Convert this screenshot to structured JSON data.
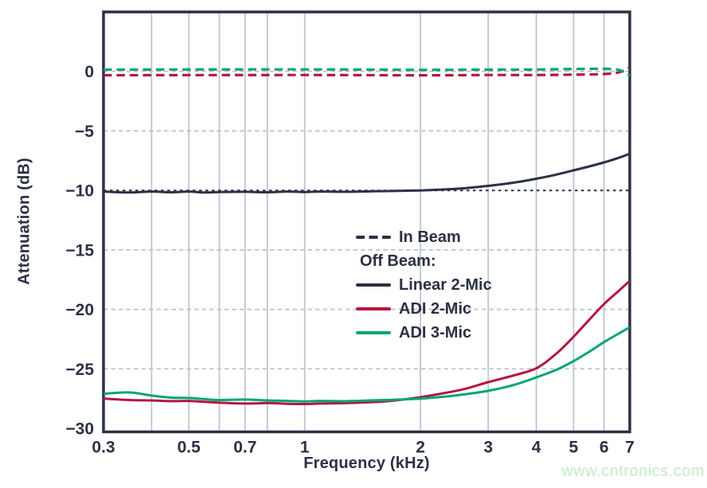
{
  "watermark": {
    "text": "www.cntronics.com"
  },
  "chart_data": {
    "type": "line",
    "title": "",
    "xlabel": "Frequency (kHz)",
    "ylabel": "Attenuation (dB)",
    "x_scale": "log",
    "xlim": [
      0.3,
      7
    ],
    "ylim": [
      -30.3,
      5
    ],
    "grid": true,
    "legend_position": "inside center-right",
    "x_ticks": {
      "values": [
        0.3,
        0.5,
        0.7,
        1,
        2,
        3,
        4,
        5,
        6,
        7
      ],
      "labels": [
        "0.3",
        "0.5",
        "0.7",
        "1",
        "2",
        "3",
        "4",
        "5",
        "6",
        "7"
      ]
    },
    "y_ticks": {
      "values": [
        0,
        -5,
        -10,
        -15,
        -20,
        -25,
        -30
      ],
      "labels": [
        "0",
        "−5",
        "−10",
        "−15",
        "−20",
        "−25",
        "−30"
      ]
    },
    "x_gridlines": [
      0.4,
      0.5,
      0.6,
      0.7,
      0.8,
      1,
      2,
      3,
      4,
      5,
      6
    ],
    "y_gridlines_light": [
      0,
      -5,
      -15,
      -20,
      -25
    ],
    "y_gridline_dark": -10,
    "colors": {
      "dark": "#2b3144",
      "crimson": "#b3173f",
      "green": "#00a579",
      "grid": "#bcc2cf",
      "watermark": "#c6ecc3"
    },
    "legend": {
      "in_beam_label": "In Beam",
      "off_beam_label": "Off Beam:",
      "items": [
        {
          "label": "Linear 2-Mic",
          "color": "dark"
        },
        {
          "label": "ADI 2-Mic",
          "color": "crimson"
        },
        {
          "label": "ADI 3-Mic",
          "color": "green"
        }
      ]
    },
    "series": [
      {
        "name": "Linear 2-Mic off beam",
        "color": "dark",
        "dash": false,
        "points": [
          [
            0.3,
            -10.1
          ],
          [
            0.35,
            -10.18
          ],
          [
            0.4,
            -10.1
          ],
          [
            0.45,
            -10.16
          ],
          [
            0.5,
            -10.1
          ],
          [
            0.55,
            -10.18
          ],
          [
            0.6,
            -10.14
          ],
          [
            0.7,
            -10.12
          ],
          [
            0.8,
            -10.16
          ],
          [
            0.9,
            -10.1
          ],
          [
            1,
            -10.14
          ],
          [
            1.1,
            -10.1
          ],
          [
            1.3,
            -10.12
          ],
          [
            1.5,
            -10.08
          ],
          [
            1.7,
            -10.05
          ],
          [
            2,
            -10.0
          ],
          [
            2.3,
            -9.92
          ],
          [
            2.6,
            -9.82
          ],
          [
            3,
            -9.62
          ],
          [
            3.5,
            -9.35
          ],
          [
            4,
            -9.02
          ],
          [
            4.5,
            -8.68
          ],
          [
            5,
            -8.32
          ],
          [
            5.5,
            -7.98
          ],
          [
            6,
            -7.65
          ],
          [
            6.5,
            -7.3
          ],
          [
            7,
            -6.92
          ]
        ]
      },
      {
        "name": "ADI 2-Mic off beam",
        "color": "crimson",
        "dash": false,
        "points": [
          [
            0.3,
            -27.5
          ],
          [
            0.35,
            -27.62
          ],
          [
            0.4,
            -27.66
          ],
          [
            0.45,
            -27.72
          ],
          [
            0.5,
            -27.7
          ],
          [
            0.55,
            -27.78
          ],
          [
            0.6,
            -27.85
          ],
          [
            0.7,
            -27.92
          ],
          [
            0.8,
            -27.88
          ],
          [
            0.9,
            -27.94
          ],
          [
            1,
            -27.96
          ],
          [
            1.1,
            -27.92
          ],
          [
            1.3,
            -27.88
          ],
          [
            1.5,
            -27.8
          ],
          [
            1.7,
            -27.68
          ],
          [
            2,
            -27.38
          ],
          [
            2.3,
            -27.05
          ],
          [
            2.6,
            -26.7
          ],
          [
            3,
            -26.12
          ],
          [
            3.5,
            -25.55
          ],
          [
            4,
            -24.95
          ],
          [
            4.5,
            -23.75
          ],
          [
            5,
            -22.3
          ],
          [
            5.5,
            -20.85
          ],
          [
            6,
            -19.55
          ],
          [
            6.5,
            -18.55
          ],
          [
            7,
            -17.6
          ]
        ]
      },
      {
        "name": "ADI 3-Mic off beam",
        "color": "green",
        "dash": false,
        "points": [
          [
            0.3,
            -27.1
          ],
          [
            0.35,
            -26.98
          ],
          [
            0.4,
            -27.25
          ],
          [
            0.45,
            -27.42
          ],
          [
            0.5,
            -27.45
          ],
          [
            0.55,
            -27.55
          ],
          [
            0.6,
            -27.62
          ],
          [
            0.7,
            -27.58
          ],
          [
            0.8,
            -27.66
          ],
          [
            0.9,
            -27.7
          ],
          [
            1,
            -27.74
          ],
          [
            1.1,
            -27.7
          ],
          [
            1.3,
            -27.72
          ],
          [
            1.5,
            -27.65
          ],
          [
            1.7,
            -27.6
          ],
          [
            2,
            -27.5
          ],
          [
            2.3,
            -27.35
          ],
          [
            2.6,
            -27.15
          ],
          [
            3,
            -26.85
          ],
          [
            3.5,
            -26.35
          ],
          [
            4,
            -25.72
          ],
          [
            4.5,
            -25.1
          ],
          [
            5,
            -24.35
          ],
          [
            5.5,
            -23.55
          ],
          [
            6,
            -22.75
          ],
          [
            6.5,
            -22.1
          ],
          [
            7,
            -21.5
          ]
        ]
      },
      {
        "name": "ADI 2-Mic in beam",
        "color": "crimson",
        "dash": true,
        "points": [
          [
            0.3,
            -0.32
          ],
          [
            1,
            -0.3
          ],
          [
            2,
            -0.33
          ],
          [
            3,
            -0.3
          ],
          [
            4,
            -0.3
          ],
          [
            5,
            -0.27
          ],
          [
            6,
            -0.22
          ],
          [
            6.6,
            -0.05
          ],
          [
            7,
            0.35
          ]
        ]
      },
      {
        "name": "ADI 3-Mic in beam",
        "color": "green",
        "dash": true,
        "points": [
          [
            0.3,
            0.15
          ],
          [
            1,
            0.17
          ],
          [
            2,
            0.13
          ],
          [
            3,
            0.15
          ],
          [
            4,
            0.16
          ],
          [
            5,
            0.2
          ],
          [
            6,
            0.22
          ],
          [
            6.6,
            0.1
          ],
          [
            7,
            -0.4
          ]
        ]
      }
    ]
  }
}
